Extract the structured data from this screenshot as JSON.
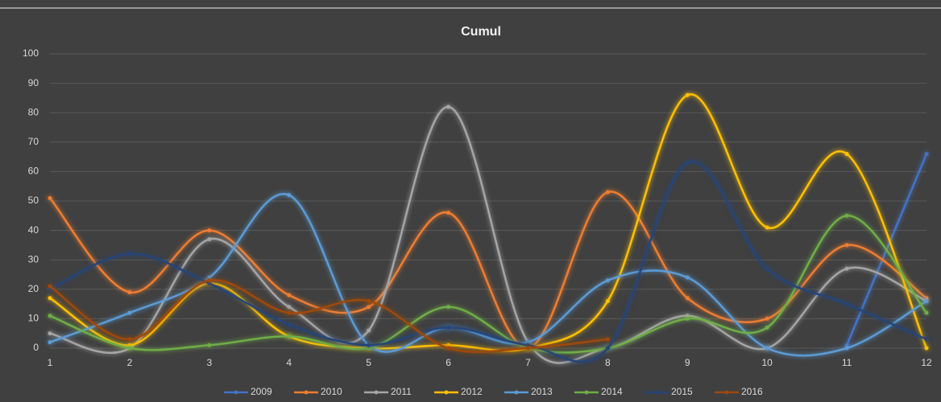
{
  "chart_data": {
    "type": "line",
    "title": "Cumul",
    "smooth": true,
    "x": [
      1,
      2,
      3,
      4,
      5,
      6,
      7,
      8,
      9,
      10,
      11,
      12
    ],
    "xlim": [
      1,
      12
    ],
    "xticks": [
      1,
      2,
      3,
      4,
      5,
      6,
      7,
      8,
      9,
      10,
      11,
      12
    ],
    "ylim": [
      0,
      100
    ],
    "yticks": [
      0,
      10,
      20,
      30,
      40,
      50,
      60,
      70,
      80,
      90,
      100
    ],
    "grid": true,
    "legend": "bottom",
    "series": [
      {
        "name": "2009",
        "color": "#4472c4",
        "values": [
          null,
          null,
          null,
          null,
          null,
          null,
          null,
          null,
          null,
          null,
          1,
          66
        ]
      },
      {
        "name": "2010",
        "color": "#ed7d31",
        "values": [
          51,
          19,
          40,
          18,
          14,
          46,
          0,
          53,
          17,
          10,
          35,
          17
        ]
      },
      {
        "name": "2011",
        "color": "#a5a5a5",
        "values": [
          5,
          0,
          37,
          14,
          6,
          82,
          2,
          0,
          11,
          0,
          27,
          16
        ]
      },
      {
        "name": "2012",
        "color": "#ffc000",
        "values": [
          17,
          1,
          22,
          4,
          0,
          1,
          0,
          16,
          86,
          41,
          66,
          0
        ]
      },
      {
        "name": "2013",
        "color": "#5b9bd5",
        "values": [
          2,
          12,
          24,
          52,
          1,
          7,
          2,
          23,
          24,
          0,
          0,
          16
        ]
      },
      {
        "name": "2014",
        "color": "#70ad47",
        "values": [
          11,
          0,
          1,
          4,
          0,
          14,
          0,
          0,
          10,
          7,
          45,
          12
        ]
      },
      {
        "name": "2015",
        "color": "#264478",
        "values": [
          20,
          32,
          22,
          8,
          1,
          7,
          1,
          0,
          63,
          27,
          15,
          3
        ]
      },
      {
        "name": "2016",
        "color": "#9e480e",
        "values": [
          21,
          3,
          23,
          12,
          16,
          0,
          0,
          3,
          null,
          null,
          null,
          null
        ]
      }
    ]
  }
}
